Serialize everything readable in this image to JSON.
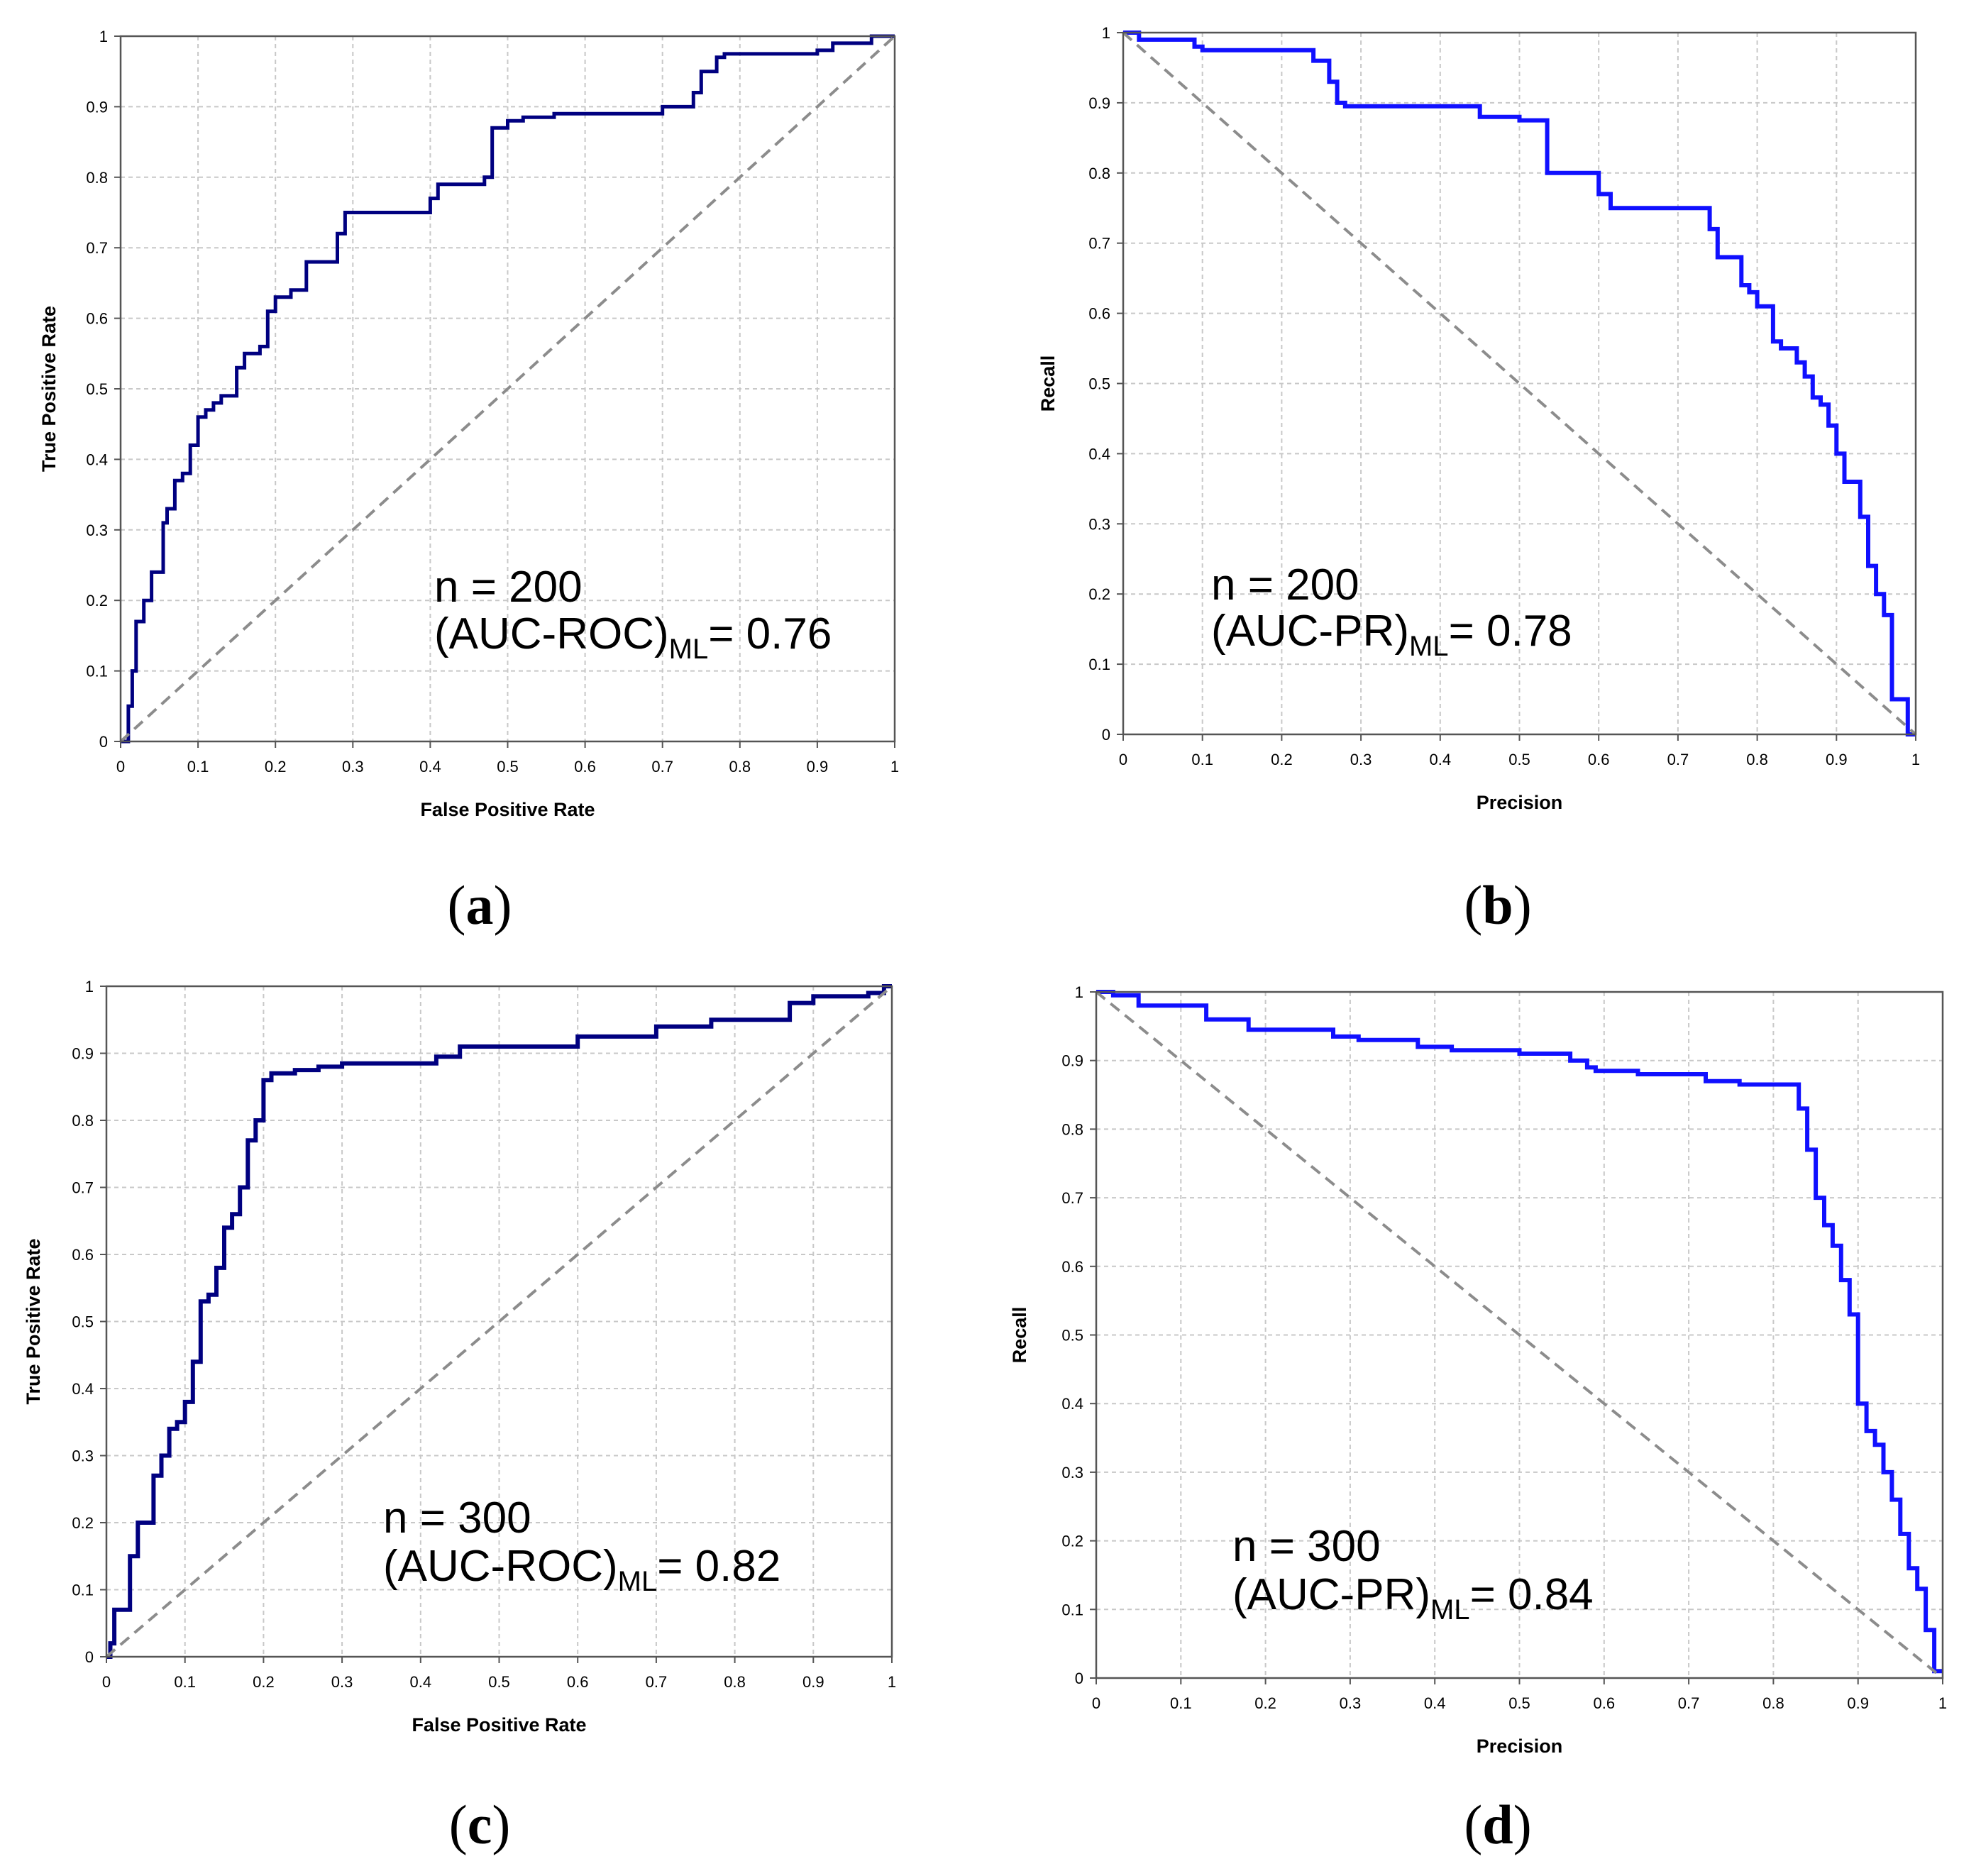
{
  "figure": {
    "panel_labels": [
      {
        "open": "(",
        "letter": "a",
        "close": ")"
      },
      {
        "open": "(",
        "letter": "b",
        "close": ")"
      },
      {
        "open": "(",
        "letter": "c",
        "close": ")"
      },
      {
        "open": "(",
        "letter": "d",
        "close": ")"
      }
    ]
  },
  "colors": {
    "roc_curve": "#000080",
    "pr_curve": "#1010ff",
    "diagonal": "#8c8c8c",
    "grid": "#c8c8c8",
    "axis": "#555555"
  },
  "chart_data": [
    {
      "type": "line",
      "panel": "a",
      "title": "",
      "xlabel": "False Positive Rate",
      "ylabel": "True Positive Rate",
      "xlim": [
        0,
        1
      ],
      "ylim": [
        0,
        1
      ],
      "xticks": [
        "0",
        "0.1",
        "0.2",
        "0.3",
        "0.4",
        "0.5",
        "0.6",
        "0.7",
        "0.8",
        "0.9",
        "1"
      ],
      "yticks": [
        "0",
        "0.1",
        "0.2",
        "0.3",
        "0.4",
        "0.5",
        "0.6",
        "0.7",
        "0.8",
        "0.9",
        "1"
      ],
      "grid": true,
      "annotation": {
        "line1": "n = 200",
        "pre": "(AUC-ROC)",
        "sub": "ML",
        "post": "= 0.76"
      },
      "series": [
        {
          "name": "ROC curve",
          "style": "solid",
          "x": [
            0,
            0.01,
            0.01,
            0.015,
            0.015,
            0.02,
            0.02,
            0.03,
            0.03,
            0.04,
            0.04,
            0.055,
            0.055,
            0.06,
            0.06,
            0.07,
            0.07,
            0.08,
            0.08,
            0.09,
            0.09,
            0.1,
            0.1,
            0.11,
            0.11,
            0.12,
            0.12,
            0.13,
            0.13,
            0.15,
            0.15,
            0.16,
            0.16,
            0.18,
            0.18,
            0.19,
            0.19,
            0.2,
            0.2,
            0.22,
            0.22,
            0.24,
            0.24,
            0.28,
            0.28,
            0.29,
            0.29,
            0.4,
            0.4,
            0.41,
            0.41,
            0.47,
            0.47,
            0.48,
            0.48,
            0.5,
            0.5,
            0.52,
            0.52,
            0.56,
            0.56,
            0.7,
            0.7,
            0.74,
            0.74,
            0.75,
            0.75,
            0.77,
            0.77,
            0.78,
            0.78,
            0.9,
            0.9,
            0.92,
            0.92,
            0.97,
            0.97,
            0.99,
            0.99,
            1
          ],
          "y": [
            0,
            0,
            0.05,
            0.05,
            0.1,
            0.1,
            0.17,
            0.17,
            0.2,
            0.2,
            0.24,
            0.24,
            0.31,
            0.31,
            0.33,
            0.33,
            0.37,
            0.37,
            0.38,
            0.38,
            0.42,
            0.42,
            0.46,
            0.46,
            0.47,
            0.47,
            0.48,
            0.48,
            0.49,
            0.49,
            0.53,
            0.53,
            0.55,
            0.55,
            0.56,
            0.56,
            0.61,
            0.61,
            0.63,
            0.63,
            0.64,
            0.64,
            0.68,
            0.68,
            0.72,
            0.72,
            0.75,
            0.75,
            0.77,
            0.77,
            0.79,
            0.79,
            0.8,
            0.8,
            0.87,
            0.87,
            0.88,
            0.88,
            0.885,
            0.885,
            0.89,
            0.89,
            0.9,
            0.9,
            0.92,
            0.92,
            0.95,
            0.95,
            0.97,
            0.97,
            0.975,
            0.975,
            0.98,
            0.98,
            0.99,
            0.99,
            1,
            1,
            1,
            1
          ]
        },
        {
          "name": "chance",
          "style": "dashed",
          "x": [
            0,
            1
          ],
          "y": [
            0,
            1
          ]
        }
      ]
    },
    {
      "type": "line",
      "panel": "b",
      "title": "",
      "xlabel": "Precision",
      "ylabel": "Recall",
      "xlim": [
        0,
        1
      ],
      "ylim": [
        0,
        1
      ],
      "xticks": [
        "0",
        "0.1",
        "0.2",
        "0.3",
        "0.4",
        "0.5",
        "0.6",
        "0.7",
        "0.8",
        "0.9",
        "1"
      ],
      "yticks": [
        "0",
        "0.1",
        "0.2",
        "0.3",
        "0.4",
        "0.5",
        "0.6",
        "0.7",
        "0.8",
        "0.9",
        "1"
      ],
      "grid": true,
      "annotation": {
        "line1": "n = 200",
        "pre": "(AUC-PR)",
        "sub": "ML",
        "post": "= 0.78"
      },
      "series": [
        {
          "name": "PR curve",
          "style": "solid",
          "x": [
            0,
            0.02,
            0.02,
            0.09,
            0.09,
            0.1,
            0.1,
            0.24,
            0.24,
            0.26,
            0.26,
            0.27,
            0.27,
            0.28,
            0.28,
            0.45,
            0.45,
            0.5,
            0.5,
            0.535,
            0.535,
            0.6,
            0.6,
            0.615,
            0.615,
            0.74,
            0.74,
            0.75,
            0.75,
            0.78,
            0.78,
            0.79,
            0.79,
            0.8,
            0.8,
            0.82,
            0.82,
            0.83,
            0.83,
            0.85,
            0.85,
            0.86,
            0.86,
            0.87,
            0.87,
            0.88,
            0.88,
            0.89,
            0.89,
            0.9,
            0.9,
            0.91,
            0.91,
            0.93,
            0.93,
            0.94,
            0.94,
            0.95,
            0.95,
            0.96,
            0.96,
            0.97,
            0.97,
            0.98,
            0.98,
            0.99,
            0.99,
            1
          ],
          "y": [
            1,
            1,
            0.99,
            0.99,
            0.98,
            0.98,
            0.975,
            0.975,
            0.96,
            0.96,
            0.93,
            0.93,
            0.9,
            0.9,
            0.895,
            0.895,
            0.88,
            0.88,
            0.875,
            0.875,
            0.8,
            0.8,
            0.77,
            0.77,
            0.75,
            0.75,
            0.72,
            0.72,
            0.68,
            0.68,
            0.64,
            0.64,
            0.63,
            0.63,
            0.61,
            0.61,
            0.56,
            0.56,
            0.55,
            0.55,
            0.53,
            0.53,
            0.51,
            0.51,
            0.48,
            0.48,
            0.47,
            0.47,
            0.44,
            0.44,
            0.4,
            0.4,
            0.36,
            0.36,
            0.31,
            0.31,
            0.24,
            0.24,
            0.2,
            0.2,
            0.17,
            0.17,
            0.05,
            0.05,
            0.05,
            0.05,
            0,
            0
          ]
        },
        {
          "name": "diagonal",
          "style": "dashed",
          "x": [
            0,
            1
          ],
          "y": [
            1,
            0
          ]
        }
      ]
    },
    {
      "type": "line",
      "panel": "c",
      "title": "",
      "xlabel": "False Positive Rate",
      "ylabel": "True Positive Rate",
      "xlim": [
        0,
        1
      ],
      "ylim": [
        0,
        1
      ],
      "xticks": [
        "0",
        "0.1",
        "0.2",
        "0.3",
        "0.4",
        "0.5",
        "0.6",
        "0.7",
        "0.8",
        "0.9",
        "1"
      ],
      "yticks": [
        "0",
        "0.1",
        "0.2",
        "0.3",
        "0.4",
        "0.5",
        "0.6",
        "0.7",
        "0.8",
        "0.9",
        "1"
      ],
      "grid": true,
      "annotation": {
        "line1": "n = 300",
        "pre": "(AUC-ROC)",
        "sub": "ML",
        "post": "= 0.82"
      },
      "series": [
        {
          "name": "ROC curve",
          "style": "solid",
          "x": [
            0,
            0.005,
            0.005,
            0.01,
            0.01,
            0.03,
            0.03,
            0.04,
            0.04,
            0.06,
            0.06,
            0.07,
            0.07,
            0.08,
            0.08,
            0.09,
            0.09,
            0.1,
            0.1,
            0.11,
            0.11,
            0.12,
            0.12,
            0.13,
            0.13,
            0.14,
            0.14,
            0.15,
            0.15,
            0.16,
            0.16,
            0.17,
            0.17,
            0.18,
            0.18,
            0.19,
            0.19,
            0.2,
            0.2,
            0.21,
            0.21,
            0.24,
            0.24,
            0.27,
            0.27,
            0.3,
            0.3,
            0.42,
            0.42,
            0.45,
            0.45,
            0.6,
            0.6,
            0.7,
            0.7,
            0.77,
            0.77,
            0.87,
            0.87,
            0.87,
            0.87,
            0.9,
            0.9,
            0.97,
            0.97,
            0.99,
            0.99,
            1
          ],
          "y": [
            0,
            0,
            0.02,
            0.02,
            0.07,
            0.07,
            0.15,
            0.15,
            0.2,
            0.2,
            0.27,
            0.27,
            0.3,
            0.3,
            0.34,
            0.34,
            0.35,
            0.35,
            0.38,
            0.38,
            0.44,
            0.44,
            0.53,
            0.53,
            0.54,
            0.54,
            0.58,
            0.58,
            0.64,
            0.64,
            0.66,
            0.66,
            0.7,
            0.7,
            0.77,
            0.77,
            0.8,
            0.8,
            0.86,
            0.86,
            0.87,
            0.87,
            0.875,
            0.875,
            0.88,
            0.88,
            0.885,
            0.885,
            0.895,
            0.895,
            0.91,
            0.91,
            0.925,
            0.925,
            0.94,
            0.94,
            0.95,
            0.95,
            0.96,
            0.96,
            0.975,
            0.975,
            0.985,
            0.985,
            0.99,
            0.99,
            1,
            1
          ]
        },
        {
          "name": "chance",
          "style": "dashed",
          "x": [
            0,
            1
          ],
          "y": [
            0,
            1
          ]
        }
      ]
    },
    {
      "type": "line",
      "panel": "d",
      "title": "",
      "xlabel": "Precision",
      "ylabel": "Recall",
      "xlim": [
        0,
        1
      ],
      "ylim": [
        0,
        1
      ],
      "xticks": [
        "0",
        "0.1",
        "0.2",
        "0.3",
        "0.4",
        "0.5",
        "0.6",
        "0.7",
        "0.8",
        "0.9",
        "1"
      ],
      "yticks": [
        "0",
        "0.1",
        "0.2",
        "0.3",
        "0.4",
        "0.5",
        "0.6",
        "0.7",
        "0.8",
        "0.9",
        "1"
      ],
      "grid": true,
      "annotation": {
        "line1": "n = 300",
        "pre": "(AUC-PR)",
        "sub": "ML",
        "post": "= 0.84"
      },
      "series": [
        {
          "name": "PR curve",
          "style": "solid",
          "x": [
            0,
            0.02,
            0.02,
            0.05,
            0.05,
            0.13,
            0.13,
            0.18,
            0.18,
            0.28,
            0.28,
            0.31,
            0.31,
            0.38,
            0.38,
            0.42,
            0.42,
            0.5,
            0.5,
            0.56,
            0.56,
            0.58,
            0.58,
            0.59,
            0.59,
            0.64,
            0.64,
            0.72,
            0.72,
            0.76,
            0.76,
            0.83,
            0.83,
            0.84,
            0.84,
            0.85,
            0.85,
            0.86,
            0.86,
            0.87,
            0.87,
            0.88,
            0.88,
            0.89,
            0.89,
            0.9,
            0.9,
            0.91,
            0.91,
            0.92,
            0.92,
            0.93,
            0.93,
            0.94,
            0.94,
            0.95,
            0.95,
            0.96,
            0.96,
            0.97,
            0.97,
            0.98,
            0.98,
            0.99,
            0.99,
            1
          ],
          "y": [
            1,
            1,
            0.995,
            0.995,
            0.98,
            0.98,
            0.96,
            0.96,
            0.945,
            0.945,
            0.935,
            0.935,
            0.93,
            0.93,
            0.92,
            0.92,
            0.915,
            0.915,
            0.91,
            0.91,
            0.9,
            0.9,
            0.89,
            0.89,
            0.885,
            0.885,
            0.88,
            0.88,
            0.87,
            0.87,
            0.865,
            0.865,
            0.83,
            0.83,
            0.77,
            0.77,
            0.7,
            0.7,
            0.66,
            0.66,
            0.63,
            0.63,
            0.58,
            0.58,
            0.53,
            0.53,
            0.4,
            0.4,
            0.36,
            0.36,
            0.34,
            0.34,
            0.3,
            0.3,
            0.26,
            0.26,
            0.21,
            0.21,
            0.16,
            0.16,
            0.13,
            0.13,
            0.07,
            0.07,
            0.01,
            0.01
          ]
        },
        {
          "name": "diagonal",
          "style": "dashed",
          "x": [
            0,
            1
          ],
          "y": [
            1,
            0
          ]
        }
      ]
    }
  ]
}
